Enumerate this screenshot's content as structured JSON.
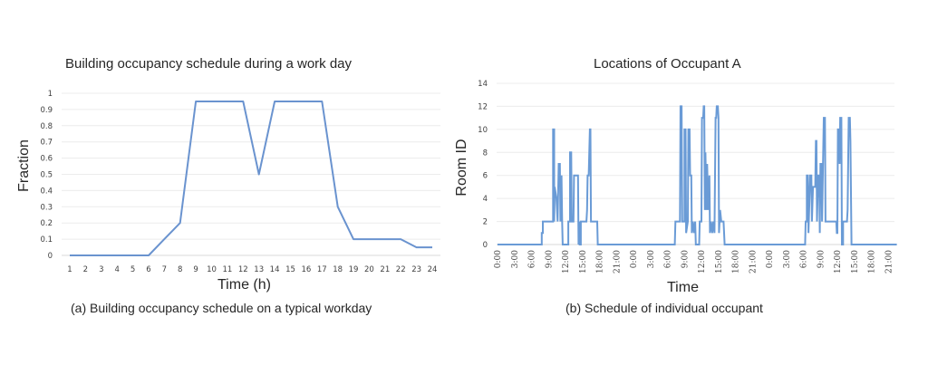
{
  "chart_data": [
    {
      "id": "a",
      "type": "line",
      "title": "Building occupancy schedule during a work day",
      "xlabel": "Time (h)",
      "ylabel": "Fraction",
      "caption": "(a) Building occupancy schedule on a typical workday",
      "x": [
        1,
        2,
        3,
        4,
        5,
        6,
        7,
        8,
        9,
        10,
        11,
        12,
        13,
        14,
        15,
        16,
        17,
        18,
        19,
        20,
        21,
        22,
        23,
        24
      ],
      "categories": [
        "1",
        "2",
        "3",
        "4",
        "5",
        "6",
        "7",
        "8",
        "9",
        "10",
        "11",
        "12",
        "13",
        "14",
        "15",
        "16",
        "17",
        "18",
        "19",
        "20",
        "21",
        "22",
        "23",
        "24"
      ],
      "values": [
        0,
        0,
        0,
        0,
        0,
        0,
        0.1,
        0.2,
        0.95,
        0.95,
        0.95,
        0.95,
        0.5,
        0.95,
        0.95,
        0.95,
        0.95,
        0.3,
        0.1,
        0.1,
        0.1,
        0.1,
        0.05,
        0.05
      ],
      "yticks": [
        "0",
        "0.1",
        "0.2",
        "0.3",
        "0.4",
        "0.5",
        "0.6",
        "0.7",
        "0.8",
        "0.9",
        "1"
      ],
      "ylim": [
        0,
        1
      ],
      "grid": true,
      "legend": null,
      "line_color": "#6a93cf"
    },
    {
      "id": "b",
      "type": "line",
      "title": "Locations of Occupant A",
      "xlabel": "Time",
      "ylabel": "Room ID",
      "caption": "(b) Schedule of individual occupant",
      "xticks": [
        "0:00",
        "3:00",
        "6:00",
        "9:00",
        "12:00",
        "15:00",
        "18:00",
        "21:00",
        "0:00",
        "3:00",
        "6:00",
        "9:00",
        "12:00",
        "15:00",
        "18:00",
        "21:00",
        "0:00",
        "3:00",
        "6:00",
        "9:00",
        "12:00",
        "15:00",
        "18:00",
        "21:00"
      ],
      "yticks": [
        "0",
        "2",
        "4",
        "6",
        "8",
        "10",
        "12",
        "14"
      ],
      "ylim": [
        0,
        14
      ],
      "xlim_hours": [
        0,
        70.5
      ],
      "grid": true,
      "legend": null,
      "line_color": "#6a9bd6",
      "series": [
        {
          "name": "Occupant A room ID",
          "points": [
            [
              0,
              0
            ],
            [
              7.8,
              0
            ],
            [
              7.8,
              1
            ],
            [
              8.0,
              1
            ],
            [
              8.0,
              2
            ],
            [
              9.8,
              2
            ],
            [
              9.8,
              10
            ],
            [
              10.0,
              10
            ],
            [
              10.0,
              2
            ],
            [
              10.1,
              5
            ],
            [
              10.4,
              4
            ],
            [
              10.6,
              2
            ],
            [
              10.8,
              7
            ],
            [
              11.0,
              7
            ],
            [
              11.1,
              2
            ],
            [
              11.3,
              6
            ],
            [
              11.4,
              2
            ],
            [
              11.5,
              0
            ],
            [
              12.5,
              0
            ],
            [
              12.5,
              2
            ],
            [
              12.8,
              2
            ],
            [
              12.8,
              8
            ],
            [
              13.0,
              8
            ],
            [
              13.1,
              2
            ],
            [
              13.4,
              2
            ],
            [
              13.5,
              6
            ],
            [
              14.2,
              6
            ],
            [
              14.3,
              0
            ],
            [
              14.4,
              2
            ],
            [
              14.5,
              0
            ],
            [
              14.7,
              0
            ],
            [
              14.7,
              2
            ],
            [
              15.7,
              2
            ],
            [
              15.8,
              3
            ],
            [
              15.9,
              6
            ],
            [
              16.1,
              6
            ],
            [
              16.3,
              10
            ],
            [
              16.4,
              10
            ],
            [
              16.5,
              2
            ],
            [
              17.6,
              2
            ],
            [
              17.7,
              0
            ],
            [
              31.3,
              0
            ],
            [
              31.4,
              2
            ],
            [
              32.2,
              2
            ],
            [
              32.3,
              12
            ],
            [
              32.5,
              12
            ],
            [
              32.6,
              2
            ],
            [
              33.0,
              2
            ],
            [
              33.0,
              10
            ],
            [
              33.2,
              10
            ],
            [
              33.3,
              1
            ],
            [
              33.6,
              2
            ],
            [
              33.7,
              10
            ],
            [
              33.9,
              10
            ],
            [
              34.0,
              6
            ],
            [
              34.2,
              6
            ],
            [
              34.3,
              1
            ],
            [
              34.5,
              2
            ],
            [
              34.7,
              1
            ],
            [
              34.9,
              2
            ],
            [
              35.0,
              0
            ],
            [
              35.6,
              0
            ],
            [
              35.7,
              2
            ],
            [
              36.0,
              2
            ],
            [
              36.1,
              11
            ],
            [
              36.3,
              11
            ],
            [
              36.4,
              12
            ],
            [
              36.5,
              12
            ],
            [
              36.6,
              3
            ],
            [
              36.7,
              8
            ],
            [
              36.9,
              3
            ],
            [
              37.0,
              7
            ],
            [
              37.2,
              3
            ],
            [
              37.4,
              6
            ],
            [
              37.5,
              1
            ],
            [
              37.7,
              2
            ],
            [
              37.9,
              1
            ],
            [
              38.1,
              2
            ],
            [
              38.3,
              1
            ],
            [
              38.5,
              11
            ],
            [
              38.6,
              11
            ],
            [
              38.7,
              12
            ],
            [
              38.9,
              12
            ],
            [
              39.0,
              11
            ],
            [
              39.1,
              1
            ],
            [
              39.3,
              3
            ],
            [
              39.5,
              2
            ],
            [
              39.9,
              2
            ],
            [
              40.1,
              0
            ],
            [
              54.3,
              0
            ],
            [
              54.4,
              2
            ],
            [
              54.6,
              2
            ],
            [
              54.6,
              6
            ],
            [
              54.8,
              6
            ],
            [
              54.9,
              1
            ],
            [
              55.2,
              6
            ],
            [
              55.4,
              6
            ],
            [
              55.5,
              2
            ],
            [
              55.7,
              5
            ],
            [
              56.1,
              5
            ],
            [
              56.2,
              9
            ],
            [
              56.3,
              9
            ],
            [
              56.4,
              2
            ],
            [
              56.6,
              6
            ],
            [
              56.8,
              6
            ],
            [
              56.9,
              1
            ],
            [
              57.0,
              7
            ],
            [
              57.2,
              7
            ],
            [
              57.3,
              2
            ],
            [
              57.6,
              11
            ],
            [
              57.8,
              11
            ],
            [
              57.9,
              2
            ],
            [
              59.8,
              2
            ],
            [
              59.9,
              1
            ],
            [
              60.0,
              1
            ],
            [
              60.1,
              10
            ],
            [
              60.3,
              10
            ],
            [
              60.4,
              7
            ],
            [
              60.5,
              11
            ],
            [
              60.7,
              11
            ],
            [
              60.8,
              0
            ],
            [
              61.0,
              0
            ],
            [
              61.0,
              2
            ],
            [
              61.7,
              2
            ],
            [
              61.8,
              3
            ],
            [
              62.0,
              11
            ],
            [
              62.2,
              11
            ],
            [
              62.3,
              9
            ],
            [
              62.5,
              0
            ],
            [
              70.5,
              0
            ]
          ]
        }
      ]
    }
  ]
}
